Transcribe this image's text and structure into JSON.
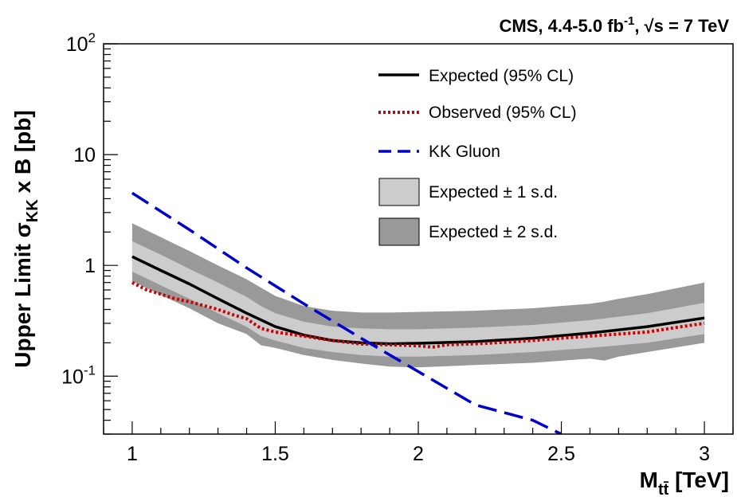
{
  "chart_data": {
    "type": "line",
    "title": "CMS, 4.4-5.0 fb",
    "title_sup": "-1",
    "title_tail": ", √s = 7 TeV",
    "ylabel": "Upper Limit σ",
    "ylabel_sub": "KK",
    "ylabel_tail": " x B [pb]",
    "xlabel": "M",
    "xlabel_sub": "tt̄",
    "xlabel_tail": " [TeV]",
    "xlim": [
      0.9,
      3.1
    ],
    "ylim": [
      0.03,
      100
    ],
    "yscale": "log",
    "x_ticks": [
      {
        "value": 1,
        "label": "1"
      },
      {
        "value": 1.5,
        "label": "1.5"
      },
      {
        "value": 2,
        "label": "2"
      },
      {
        "value": 2.5,
        "label": "2.5"
      },
      {
        "value": 3,
        "label": "3"
      }
    ],
    "y_ticks": [
      {
        "value": 0.1,
        "base": "10",
        "exp": "-1"
      },
      {
        "value": 1,
        "base": "1",
        "exp": ""
      },
      {
        "value": 10,
        "base": "10",
        "exp": ""
      },
      {
        "value": 100,
        "base": "10",
        "exp": "2"
      }
    ],
    "legend_position": "top-right",
    "series": [
      {
        "name": "Expected (95% CL)",
        "style": "line",
        "color": "#000000",
        "x": [
          1.0,
          1.1,
          1.2,
          1.3,
          1.4,
          1.5,
          1.6,
          1.7,
          1.8,
          1.9,
          2.0,
          2.2,
          2.4,
          2.6,
          2.8,
          3.0
        ],
        "y": [
          1.2,
          0.9,
          0.68,
          0.5,
          0.37,
          0.28,
          0.235,
          0.21,
          0.2,
          0.196,
          0.198,
          0.205,
          0.22,
          0.245,
          0.28,
          0.335
        ]
      },
      {
        "name": "Observed (95% CL)",
        "style": "dotted",
        "color": "#cc0000",
        "x": [
          1.0,
          1.05,
          1.1,
          1.15,
          1.2,
          1.3,
          1.35,
          1.4,
          1.45,
          1.5,
          1.6,
          1.7,
          1.8,
          1.9,
          1.95,
          2.0,
          2.05,
          2.1,
          2.2,
          2.3,
          2.4,
          2.5,
          2.6,
          2.7,
          2.75,
          2.8,
          2.9,
          3.0
        ],
        "y": [
          0.7,
          0.6,
          0.55,
          0.5,
          0.47,
          0.4,
          0.36,
          0.33,
          0.27,
          0.25,
          0.23,
          0.21,
          0.195,
          0.192,
          0.19,
          0.188,
          0.183,
          0.192,
          0.196,
          0.202,
          0.21,
          0.22,
          0.23,
          0.24,
          0.245,
          0.25,
          0.275,
          0.3
        ]
      },
      {
        "name": "KK Gluon",
        "style": "dashed",
        "color": "#0000cc",
        "x": [
          1.0,
          1.2,
          1.4,
          1.6,
          1.8,
          2.0,
          2.2,
          2.4,
          2.5
        ],
        "y": [
          4.5,
          2.1,
          0.95,
          0.45,
          0.22,
          0.11,
          0.055,
          0.04,
          0.03
        ]
      }
    ],
    "bands": [
      {
        "name": "Expected ± 2 s.d.",
        "color": "#999999",
        "x": [
          1.0,
          1.1,
          1.2,
          1.3,
          1.4,
          1.45,
          1.5,
          1.6,
          1.7,
          1.8,
          1.9,
          2.0,
          2.2,
          2.4,
          2.6,
          2.65,
          2.7,
          2.8,
          3.0
        ],
        "low": [
          0.72,
          0.54,
          0.41,
          0.3,
          0.24,
          0.19,
          0.18,
          0.155,
          0.14,
          0.13,
          0.122,
          0.12,
          0.126,
          0.132,
          0.144,
          0.138,
          0.15,
          0.165,
          0.2
        ],
        "high": [
          2.4,
          1.8,
          1.35,
          1.0,
          0.75,
          0.63,
          0.53,
          0.43,
          0.39,
          0.375,
          0.375,
          0.38,
          0.39,
          0.41,
          0.45,
          0.47,
          0.5,
          0.55,
          0.7
        ]
      },
      {
        "name": "Expected ± 1 s.d.",
        "color": "#cccccc",
        "x": [
          1.0,
          1.1,
          1.2,
          1.3,
          1.4,
          1.45,
          1.5,
          1.6,
          1.7,
          1.8,
          1.9,
          2.0,
          2.2,
          2.4,
          2.6,
          2.8,
          3.0
        ],
        "low": [
          0.88,
          0.66,
          0.5,
          0.37,
          0.28,
          0.23,
          0.21,
          0.18,
          0.165,
          0.155,
          0.15,
          0.15,
          0.155,
          0.165,
          0.18,
          0.2,
          0.24
        ],
        "high": [
          1.65,
          1.25,
          0.93,
          0.7,
          0.52,
          0.43,
          0.37,
          0.31,
          0.28,
          0.27,
          0.265,
          0.265,
          0.275,
          0.29,
          0.32,
          0.37,
          0.46
        ]
      }
    ]
  }
}
